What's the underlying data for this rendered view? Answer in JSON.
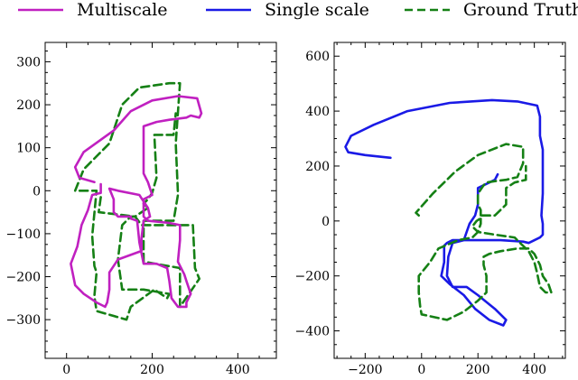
{
  "legend": {
    "items": [
      {
        "label": "Multiscale",
        "color": "#c020c0",
        "dash": "solid"
      },
      {
        "label": "Single scale",
        "color": "#1a1ae6",
        "dash": "solid"
      },
      {
        "label": "Ground Truth",
        "color": "#158015",
        "dash": "dashed"
      }
    ]
  },
  "chart_data": [
    {
      "type": "line",
      "title": "",
      "xlabel": "",
      "ylabel": "",
      "xlim": [
        -50,
        490
      ],
      "ylim": [
        -390,
        345
      ],
      "xticks": [
        0,
        200,
        400
      ],
      "yticks": [
        -300,
        -200,
        -100,
        0,
        100,
        200,
        300
      ],
      "grid": false,
      "series": [
        {
          "name": "Ground Truth",
          "color": "#158015",
          "dash": "dashed",
          "points": [
            [
              80,
              -15
            ],
            [
              75,
              -50
            ],
            [
              160,
              -60
            ],
            [
              175,
              -80
            ],
            [
              295,
              -80
            ],
            [
              300,
              -180
            ],
            [
              310,
              -205
            ],
            [
              265,
              -270
            ],
            [
              265,
              -180
            ],
            [
              180,
              -165
            ],
            [
              180,
              -70
            ],
            [
              250,
              -70
            ],
            [
              260,
              -10
            ],
            [
              260,
              -5
            ],
            [
              260,
              -5
            ],
            [
              255,
              110
            ],
            [
              265,
              250
            ],
            [
              240,
              250
            ],
            [
              170,
              240
            ],
            [
              130,
              200
            ],
            [
              100,
              110
            ],
            [
              40,
              50
            ],
            [
              20,
              0
            ],
            [
              70,
              0
            ],
            [
              60,
              -105
            ],
            [
              60,
              -105
            ],
            [
              65,
              -175
            ],
            [
              70,
              -190
            ],
            [
              65,
              -245
            ],
            [
              70,
              -280
            ],
            [
              140,
              -300
            ],
            [
              150,
              -270
            ],
            [
              205,
              -230
            ],
            [
              235,
              -250
            ],
            [
              240,
              -240
            ],
            [
              180,
              -230
            ],
            [
              130,
              -230
            ],
            [
              120,
              -160
            ],
            [
              130,
              -80
            ],
            [
              150,
              -60
            ],
            [
              160,
              -60
            ],
            [
              190,
              -40
            ],
            [
              180,
              -30
            ],
            [
              190,
              -20
            ],
            [
              200,
              -5
            ],
            [
              210,
              30
            ],
            [
              205,
              130
            ],
            [
              250,
              130
            ],
            [
              255,
              180
            ]
          ]
        },
        {
          "name": "Multiscale",
          "color": "#c020c0",
          "dash": "solid",
          "points": [
            [
              65,
              20
            ],
            [
              30,
              30
            ],
            [
              20,
              55
            ],
            [
              40,
              90
            ],
            [
              110,
              140
            ],
            [
              150,
              185
            ],
            [
              200,
              210
            ],
            [
              260,
              220
            ],
            [
              305,
              215
            ],
            [
              315,
              180
            ],
            [
              310,
              170
            ],
            [
              290,
              175
            ],
            [
              280,
              170
            ],
            [
              240,
              165
            ],
            [
              210,
              160
            ],
            [
              180,
              150
            ],
            [
              180,
              150
            ],
            [
              180,
              80
            ],
            [
              180,
              40
            ],
            [
              190,
              20
            ],
            [
              200,
              -10
            ],
            [
              180,
              -20
            ],
            [
              180,
              -60
            ],
            [
              190,
              -70
            ],
            [
              240,
              -75
            ],
            [
              265,
              -80
            ],
            [
              265,
              -105
            ],
            [
              265,
              -115
            ],
            [
              260,
              -165
            ],
            [
              275,
              -195
            ],
            [
              280,
              -210
            ],
            [
              290,
              -240
            ],
            [
              280,
              -260
            ],
            [
              280,
              -270
            ],
            [
              260,
              -270
            ],
            [
              260,
              -270
            ],
            [
              245,
              -250
            ],
            [
              240,
              -210
            ],
            [
              235,
              -180
            ],
            [
              210,
              -170
            ],
            [
              180,
              -170
            ],
            [
              170,
              -120
            ],
            [
              165,
              -70
            ],
            [
              150,
              -65
            ],
            [
              150,
              -60
            ],
            [
              120,
              -60
            ],
            [
              110,
              -50
            ],
            [
              110,
              -20
            ],
            [
              100,
              5
            ],
            [
              120,
              0
            ],
            [
              170,
              -10
            ],
            [
              180,
              -25
            ],
            [
              190,
              -40
            ],
            [
              195,
              -60
            ],
            [
              180,
              -70
            ],
            [
              175,
              -110
            ],
            [
              175,
              -140
            ],
            [
              120,
              -160
            ],
            [
              100,
              -190
            ],
            [
              100,
              -230
            ],
            [
              95,
              -260
            ],
            [
              90,
              -270
            ],
            [
              70,
              -260
            ],
            [
              40,
              -240
            ],
            [
              20,
              -220
            ],
            [
              15,
              -195
            ],
            [
              10,
              -170
            ],
            [
              25,
              -130
            ],
            [
              35,
              -80
            ],
            [
              50,
              -45
            ],
            [
              60,
              -10
            ],
            [
              80,
              -5
            ],
            [
              80,
              15
            ]
          ]
        }
      ]
    },
    {
      "type": "line",
      "title": "",
      "xlabel": "",
      "ylabel": "",
      "xlim": [
        -310,
        510
      ],
      "ylim": [
        -500,
        650
      ],
      "xticks": [
        -200,
        0,
        200,
        400
      ],
      "yticks": [
        -400,
        -200,
        0,
        200,
        400,
        600
      ],
      "grid": false,
      "series": [
        {
          "name": "Single scale",
          "color": "#1a1ae6",
          "dash": "solid",
          "points": [
            [
              -110,
              230
            ],
            [
              -200,
              240
            ],
            [
              -260,
              250
            ],
            [
              -270,
              270
            ],
            [
              -250,
              310
            ],
            [
              -170,
              350
            ],
            [
              -50,
              400
            ],
            [
              100,
              430
            ],
            [
              250,
              440
            ],
            [
              340,
              435
            ],
            [
              410,
              420
            ],
            [
              420,
              380
            ],
            [
              420,
              310
            ],
            [
              430,
              260
            ],
            [
              430,
              260
            ],
            [
              430,
              180
            ],
            [
              430,
              100
            ],
            [
              425,
              20
            ],
            [
              430,
              -10
            ],
            [
              430,
              -50
            ],
            [
              420,
              -60
            ],
            [
              390,
              -75
            ],
            [
              380,
              -80
            ],
            [
              360,
              -75
            ],
            [
              280,
              -70
            ],
            [
              200,
              -70
            ],
            [
              110,
              -70
            ],
            [
              90,
              -80
            ],
            [
              80,
              -90
            ],
            [
              80,
              -150
            ],
            [
              70,
              -200
            ],
            [
              100,
              -230
            ],
            [
              150,
              -270
            ],
            [
              190,
              -320
            ],
            [
              240,
              -360
            ],
            [
              290,
              -380
            ],
            [
              300,
              -360
            ],
            [
              300,
              -360
            ],
            [
              260,
              -320
            ],
            [
              200,
              -270
            ],
            [
              160,
              -240
            ],
            [
              110,
              -240
            ],
            [
              90,
              -200
            ],
            [
              95,
              -130
            ],
            [
              110,
              -80
            ],
            [
              150,
              -70
            ],
            [
              160,
              -40
            ],
            [
              170,
              -10
            ],
            [
              190,
              20
            ],
            [
              200,
              60
            ],
            [
              200,
              120
            ],
            [
              260,
              150
            ],
            [
              270,
              170
            ]
          ]
        },
        {
          "name": "Ground Truth",
          "color": "#158015",
          "dash": "dashed",
          "points": [
            [
              -10,
              20
            ],
            [
              -20,
              30
            ],
            [
              40,
              100
            ],
            [
              120,
              180
            ],
            [
              200,
              240
            ],
            [
              300,
              280
            ],
            [
              360,
              270
            ],
            [
              360,
              210
            ],
            [
              340,
              160
            ],
            [
              300,
              150
            ],
            [
              260,
              145
            ],
            [
              230,
              140
            ],
            [
              220,
              130
            ],
            [
              220,
              130
            ],
            [
              200,
              100
            ],
            [
              200,
              60
            ],
            [
              210,
              40
            ],
            [
              210,
              10
            ],
            [
              195,
              0
            ],
            [
              180,
              -20
            ],
            [
              200,
              -40
            ],
            [
              260,
              -50
            ],
            [
              330,
              -60
            ],
            [
              350,
              -80
            ],
            [
              380,
              -110
            ],
            [
              400,
              -150
            ],
            [
              410,
              -190
            ],
            [
              420,
              -240
            ],
            [
              440,
              -260
            ],
            [
              460,
              -260
            ],
            [
              450,
              -230
            ],
            [
              430,
              -200
            ],
            [
              420,
              -160
            ],
            [
              400,
              -120
            ],
            [
              380,
              -100
            ],
            [
              340,
              -100
            ],
            [
              280,
              -110
            ],
            [
              240,
              -120
            ],
            [
              220,
              -130
            ],
            [
              220,
              -160
            ],
            [
              230,
              -200
            ],
            [
              230,
              -260
            ],
            [
              200,
              -290
            ],
            [
              150,
              -330
            ],
            [
              90,
              -360
            ],
            [
              0,
              -340
            ],
            [
              -5,
              -310
            ],
            [
              -10,
              -260
            ],
            [
              -10,
              -200
            ],
            [
              30,
              -150
            ],
            [
              60,
              -100
            ],
            [
              130,
              -70
            ],
            [
              180,
              -60
            ],
            [
              200,
              -40
            ],
            [
              210,
              -10
            ],
            [
              210,
              20
            ],
            [
              260,
              20
            ],
            [
              300,
              60
            ],
            [
              300,
              120
            ],
            [
              330,
              140
            ],
            [
              370,
              150
            ],
            [
              370,
              170
            ],
            [
              370,
              200
            ]
          ]
        }
      ]
    }
  ]
}
